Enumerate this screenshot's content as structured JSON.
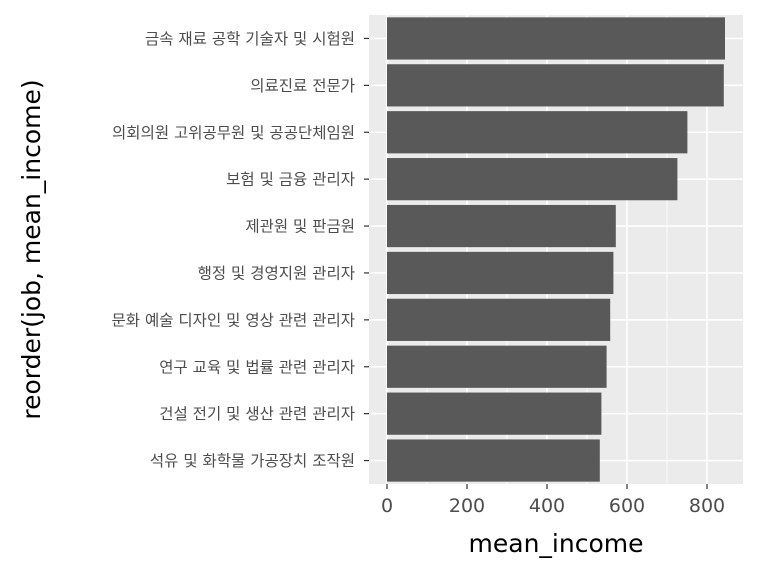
{
  "chart_data": {
    "type": "bar",
    "orientation": "horizontal",
    "xlabel": "mean_income",
    "ylabel": "reorder(job, mean_income)",
    "xlim": [
      -45,
      890
    ],
    "x_ticks": [
      0,
      200,
      400,
      600,
      800
    ],
    "grid": true,
    "bar_color": "#595959",
    "panel_color": "#ebebeb",
    "categories": [
      "금속 재료 공학 기술자 및 시험원",
      "의료진료 전문가",
      "의회의원 고위공무원 및 공공단체임원",
      "보험 및 금융 관리자",
      "제관원 및 판금원",
      "행정 및 경영지원 관리자",
      "문화 예술 디자인 및 영상 관련 관리자",
      "연구 교육 및 법률 관련 관리자",
      "건설 전기 및 생산 관련 관리자",
      "석유 및 화학물 가공장치 조작원"
    ],
    "values": [
      845,
      842,
      751,
      726,
      572,
      566,
      558,
      549,
      536,
      532
    ]
  }
}
